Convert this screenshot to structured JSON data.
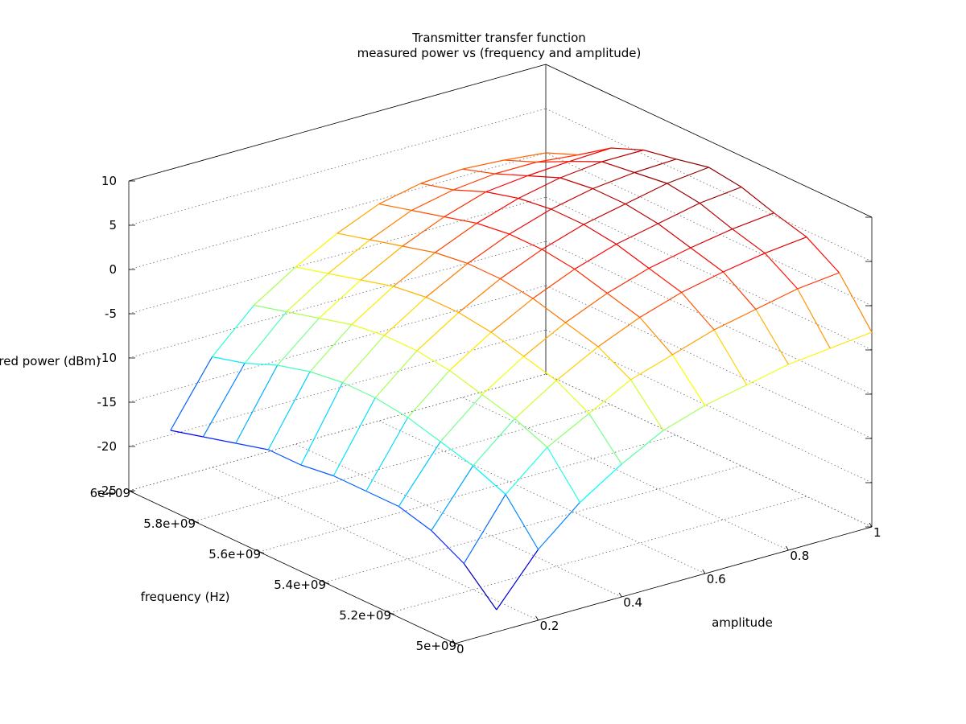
{
  "chart_data": {
    "type": "surface-mesh",
    "title": "Transmitter transfer function",
    "subtitle": "measured power vs (frequency and amplitude)",
    "xlabel": "frequency (Hz)",
    "ylabel": "amplitude",
    "zlabel": "measured power (dBm)",
    "x_ticks": [
      "5e+09",
      "5.2e+09",
      "5.4e+09",
      "5.6e+09",
      "5.8e+09",
      "6e+09"
    ],
    "y_ticks": [
      "0",
      "0.2",
      "0.4",
      "0.6",
      "0.8",
      "1"
    ],
    "z_ticks": [
      "-25",
      "-20",
      "-15",
      "-10",
      "-5",
      "0",
      "5",
      "10"
    ],
    "xlim": [
      5000000000,
      6000000000
    ],
    "ylim": [
      0,
      1
    ],
    "zlim": [
      -25,
      10
    ],
    "grid": true,
    "colormap": "jet",
    "freq_hz": [
      5000000000,
      5100000000,
      5200000000,
      5300000000,
      5400000000,
      5500000000,
      5600000000,
      5700000000,
      5800000000,
      5900000000,
      6000000000
    ],
    "amplitude": [
      0.1,
      0.2,
      0.3,
      0.4,
      0.5,
      0.6,
      0.7,
      0.8,
      0.9,
      1.0
    ],
    "power_dbm": [
      [
        -22.5,
        -17.0,
        -13.0,
        -10.0,
        -7.5,
        -6.0,
        -5.0,
        -4.0,
        -3.5,
        -3.0
      ],
      [
        -19.0,
        -12.5,
        -8.5,
        -6.0,
        -3.5,
        -2.0,
        -0.5,
        0.5,
        1.5,
        2.0
      ],
      [
        -17.0,
        -11.0,
        -7.0,
        -4.0,
        -1.5,
        0.5,
        2.0,
        3.0,
        3.8,
        4.3
      ],
      [
        -16.0,
        -10.0,
        -6.0,
        -3.0,
        -0.5,
        1.5,
        3.0,
        4.0,
        4.8,
        5.3
      ],
      [
        -16.0,
        -9.0,
        -5.0,
        -2.0,
        0.5,
        2.5,
        4.0,
        5.0,
        6.0,
        6.5
      ],
      [
        -16.0,
        -8.5,
        -4.5,
        -1.5,
        1.0,
        3.0,
        4.5,
        5.5,
        6.5,
        7.0
      ],
      [
        -16.5,
        -8.5,
        -4.5,
        -1.5,
        1.0,
        3.0,
        4.5,
        5.5,
        6.0,
        6.2
      ],
      [
        -16.5,
        -9.0,
        -5.0,
        -2.0,
        0.5,
        2.5,
        4.0,
        5.0,
        5.5,
        5.5
      ],
      [
        -17.5,
        -10.0,
        -6.0,
        -3.0,
        -0.5,
        1.5,
        3.0,
        3.5,
        3.8,
        4.0
      ],
      [
        -18.5,
        -11.5,
        -7.0,
        -4.0,
        -1.5,
        0.5,
        1.5,
        2.0,
        2.0,
        1.5
      ],
      [
        -19.5,
        -12.5,
        -8.0,
        -5.0,
        -2.5,
        -0.5,
        0.5,
        0.8,
        0.5,
        0.0
      ]
    ]
  }
}
